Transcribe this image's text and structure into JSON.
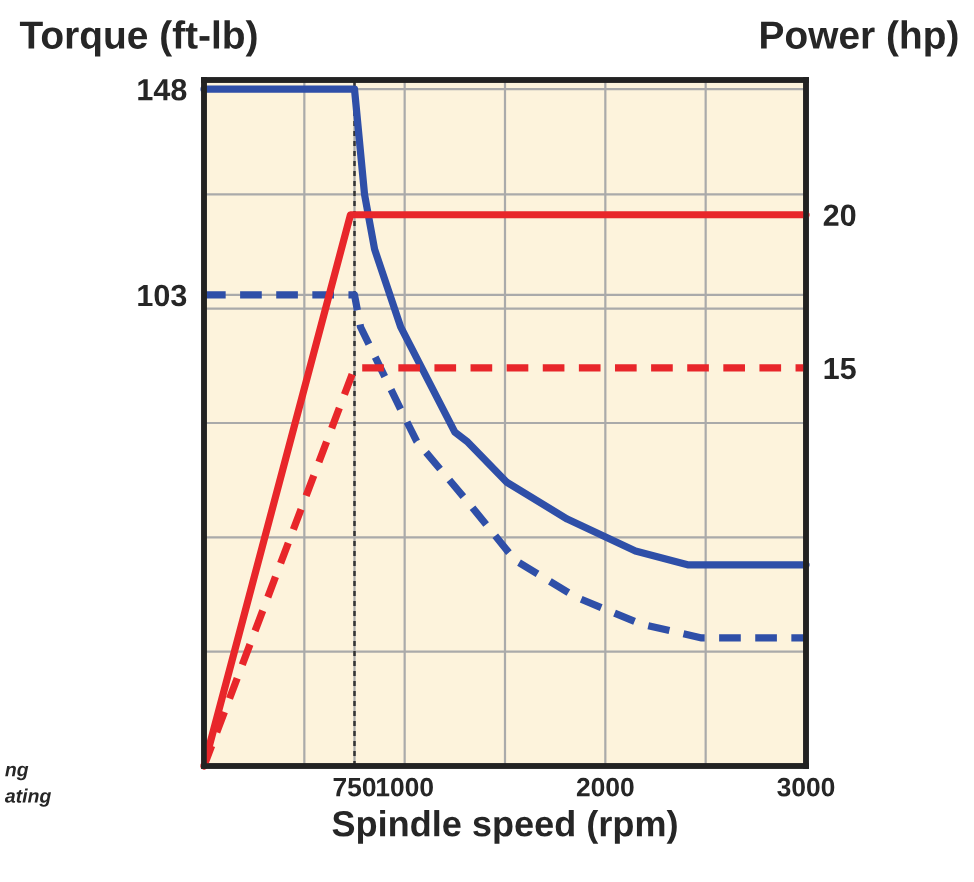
{
  "chart_data": {
    "type": "line",
    "xlabel": "Spindle speed (rpm)",
    "ylabel": "Torque (ft-lb)",
    "y2label": "Power (hp)",
    "xlim": [
      0,
      3000
    ],
    "xticks": [
      {
        "value": 500,
        "label": null
      },
      750,
      1000,
      {
        "value": 1500,
        "label": null
      },
      2000,
      {
        "value": 2500,
        "label": null
      },
      3000
    ],
    "ylim": [
      0,
      150
    ],
    "yticks": [
      {
        "value": 25,
        "label": null
      },
      {
        "value": 50,
        "label": null
      },
      {
        "value": 75,
        "label": null
      },
      {
        "value": 100,
        "label": null
      },
      103,
      {
        "value": 125,
        "label": null
      },
      148
    ],
    "y2lim": [
      2,
      24.4
    ],
    "y2ticks": [
      15,
      20
    ],
    "grid": true,
    "legend": false,
    "series": [
      {
        "color": "#2f4fa8",
        "line_style": "solid",
        "x": [
          0,
          750,
          800,
          850,
          980,
          1250,
          1310,
          1510,
          1810,
          2150,
          2410,
          3000
        ],
        "values": [
          148,
          148,
          125,
          113,
          96,
          73,
          71,
          62,
          54,
          47,
          44,
          44
        ]
      },
      {
        "color": "#2f4fa8",
        "line_style": "dashed",
        "x": [
          0,
          750,
          780,
          980,
          1060,
          1310,
          1550,
          1850,
          2180,
          2480,
          3000
        ],
        "values": [
          103,
          103,
          96,
          78,
          71,
          58,
          45,
          37,
          31,
          28,
          28
        ]
      },
      {
        "color": "#e8262a",
        "line_style": "solid",
        "axis": "y2",
        "x": [
          0,
          730,
          3000
        ],
        "values": [
          2,
          20,
          20
        ]
      },
      {
        "color": "#e8262a",
        "line_style": "dashed",
        "axis": "y2",
        "x": [
          0,
          750,
          3000
        ],
        "values": [
          2,
          15,
          15
        ]
      }
    ],
    "ref_lines": [
      {
        "axis": "x",
        "value": 750,
        "color": "#333333",
        "line_style": "dotted"
      }
    ],
    "annotations": [
      "ng",
      "ating"
    ]
  }
}
